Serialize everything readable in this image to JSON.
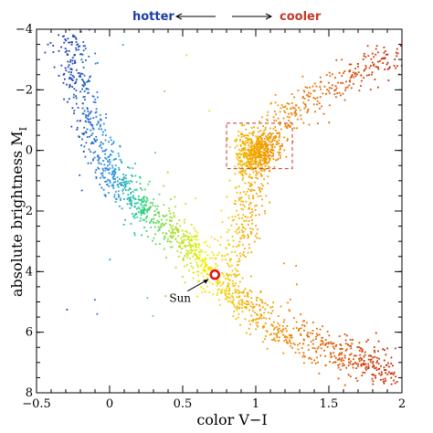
{
  "chart_data": {
    "type": "scatter",
    "xlabel": "color V−I",
    "ylabel_main": "absolute brightness M",
    "ylabel_sub": "I",
    "xlim": [
      -0.5,
      2.0
    ],
    "ylim": [
      8,
      -4
    ],
    "y_inverted": true,
    "x_ticks": [
      -0.5,
      0,
      0.5,
      1,
      1.5,
      2
    ],
    "x_tick_labels": [
      "−0.5",
      "0",
      "0.5",
      "1",
      "1.5",
      "2"
    ],
    "y_ticks": [
      -4,
      -2,
      0,
      2,
      4,
      6,
      8
    ],
    "y_tick_labels": [
      "−4",
      "−2",
      "0",
      "2",
      "4",
      "6",
      "8"
    ],
    "grid": false,
    "color_scale": [
      {
        "at": -0.3,
        "color": "#1a3ea8"
      },
      {
        "at": 0.0,
        "color": "#2a8ee8"
      },
      {
        "at": 0.2,
        "color": "#20d090"
      },
      {
        "at": 0.45,
        "color": "#a8e020"
      },
      {
        "at": 0.65,
        "color": "#f2f000"
      },
      {
        "at": 0.9,
        "color": "#f2b400"
      },
      {
        "at": 1.3,
        "color": "#ee7a00"
      },
      {
        "at": 1.9,
        "color": "#c82800"
      }
    ],
    "main_sequence": [
      {
        "x": -0.28,
        "y": -3.9
      },
      {
        "x": -0.22,
        "y": -2.4
      },
      {
        "x": -0.15,
        "y": -1.0
      },
      {
        "x": -0.05,
        "y": 0.2
      },
      {
        "x": 0.05,
        "y": 1.0
      },
      {
        "x": 0.2,
        "y": 1.8
      },
      {
        "x": 0.35,
        "y": 2.4
      },
      {
        "x": 0.5,
        "y": 2.9
      },
      {
        "x": 0.62,
        "y": 3.5
      },
      {
        "x": 0.72,
        "y": 4.1
      },
      {
        "x": 0.85,
        "y": 4.8
      },
      {
        "x": 1.0,
        "y": 5.4
      },
      {
        "x": 1.2,
        "y": 6.0
      },
      {
        "x": 1.45,
        "y": 6.5
      },
      {
        "x": 1.7,
        "y": 6.9
      },
      {
        "x": 1.95,
        "y": 7.4
      }
    ],
    "giant_branch": [
      {
        "x": 0.85,
        "y": 3.8
      },
      {
        "x": 0.9,
        "y": 2.6
      },
      {
        "x": 0.95,
        "y": 1.5
      },
      {
        "x": 1.0,
        "y": 0.5
      },
      {
        "x": 1.1,
        "y": -0.4
      },
      {
        "x": 1.25,
        "y": -1.2
      },
      {
        "x": 1.45,
        "y": -2.0
      },
      {
        "x": 1.7,
        "y": -2.6
      },
      {
        "x": 1.95,
        "y": -3.0
      }
    ],
    "red_clump": {
      "x": 1.0,
      "y": 0.0,
      "sx": 0.07,
      "sy": 0.35
    },
    "box": {
      "x0": 0.8,
      "x1": 1.25,
      "y0": -0.9,
      "y1": 0.6,
      "color": "#c0392b"
    },
    "sun": {
      "x": 0.72,
      "y": 4.1,
      "label": "Sun"
    },
    "hotter_label": "hotter",
    "cooler_label": "cooler",
    "hotter_color": "#1f3ca8",
    "cooler_color": "#c0392b"
  }
}
